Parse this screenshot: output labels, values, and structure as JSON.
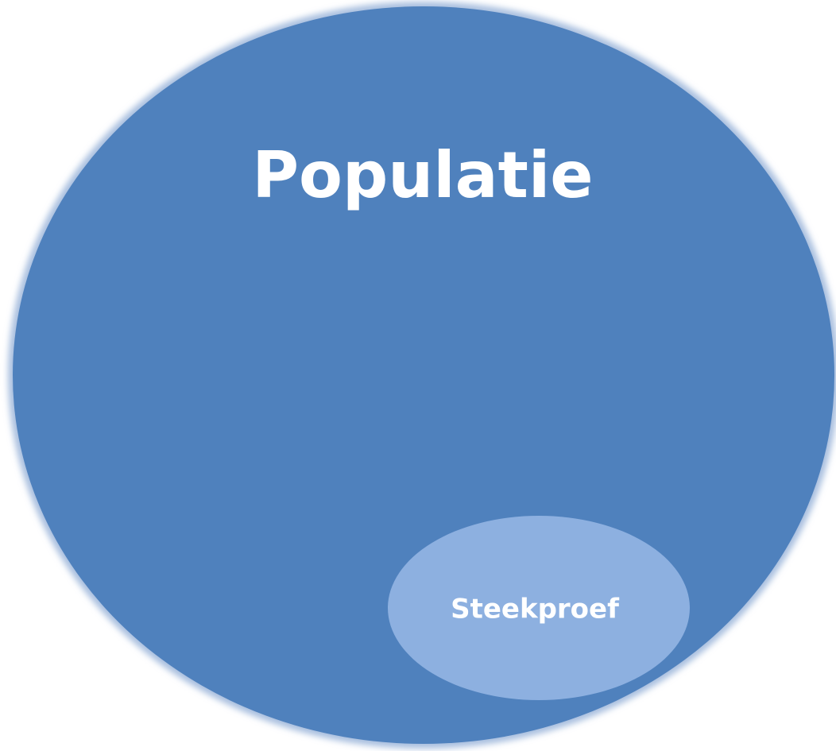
{
  "nodes": [
    {
      "label": "Populatie"
    },
    {
      "label": "Steekproef"
    }
  ]
}
